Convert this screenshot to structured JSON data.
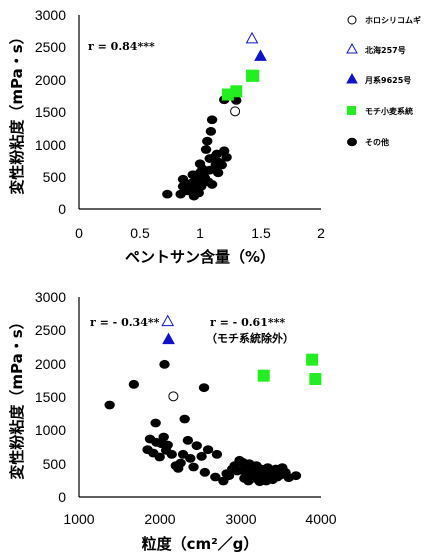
{
  "colors": {
    "green": "#22ee22",
    "blue": "#1010d0",
    "black": "#000000"
  },
  "legend": [
    {
      "label": "ホロシリコムギ",
      "marker": "open-circle"
    },
    {
      "label": "北海257号",
      "marker": "open-triangle"
    },
    {
      "label": "月系9625号",
      "marker": "filled-triangle"
    },
    {
      "label": "モチ小麦系統",
      "marker": "green-square"
    },
    {
      "label": "その他",
      "marker": "black-circle"
    }
  ],
  "chart_data": [
    {
      "type": "scatter",
      "title": "",
      "xlabel": "ペントサン含量（%）",
      "ylabel": "変性粉粘度（mPa・s）",
      "xlim": [
        0,
        2
      ],
      "ylim": [
        0,
        3000
      ],
      "xticks": [
        "0",
        "0.5",
        "1",
        "1.5",
        "2"
      ],
      "yticks": [
        "0",
        "500",
        "1000",
        "1500",
        "2000",
        "2500",
        "3000"
      ],
      "annotations": [
        "r = 0.84***"
      ],
      "series": [
        {
          "name": "ホロシリコムギ",
          "marker": "open-circle",
          "points": [
            [
              1.29,
              1510
            ]
          ]
        },
        {
          "name": "北海257号",
          "marker": "open-triangle",
          "points": [
            [
              1.43,
              2630
            ]
          ]
        },
        {
          "name": "月系9625号",
          "marker": "filled-triangle",
          "points": [
            [
              1.5,
              2360
            ]
          ]
        },
        {
          "name": "モチ小麦系統",
          "marker": "green-square",
          "points": [
            [
              1.23,
              1770
            ],
            [
              1.3,
              1820
            ],
            [
              1.43,
              2060
            ],
            [
              1.44,
              2060
            ]
          ]
        },
        {
          "name": "その他",
          "marker": "black-circle",
          "points": [
            [
              0.73,
              230
            ],
            [
              0.84,
              230
            ],
            [
              0.86,
              350
            ],
            [
              0.86,
              460
            ],
            [
              0.9,
              280
            ],
            [
              0.93,
              400
            ],
            [
              0.94,
              530
            ],
            [
              0.95,
              200
            ],
            [
              0.96,
              310
            ],
            [
              0.97,
              460
            ],
            [
              0.97,
              280
            ],
            [
              0.98,
              330
            ],
            [
              0.99,
              250
            ],
            [
              1.0,
              560
            ],
            [
              1.0,
              700
            ],
            [
              1.01,
              350
            ],
            [
              1.02,
              400
            ],
            [
              1.02,
              620
            ],
            [
              1.03,
              520
            ],
            [
              1.04,
              480
            ],
            [
              1.05,
              920
            ],
            [
              1.06,
              1050
            ],
            [
              1.07,
              420
            ],
            [
              1.08,
              600
            ],
            [
              1.08,
              780
            ],
            [
              1.09,
              1200
            ],
            [
              1.1,
              380
            ],
            [
              1.1,
              1380
            ],
            [
              1.12,
              800
            ],
            [
              1.13,
              680
            ],
            [
              1.14,
              850
            ],
            [
              1.15,
              560
            ],
            [
              1.16,
              720
            ],
            [
              1.18,
              680
            ],
            [
              1.2,
              900
            ],
            [
              1.22,
              800
            ],
            [
              1.2,
              1690
            ],
            [
              1.3,
              1680
            ]
          ]
        }
      ]
    },
    {
      "type": "scatter",
      "title": "",
      "xlabel": "粒度（cm²／g）",
      "ylabel": "変性粉粘度（mPa・s）",
      "xlim": [
        1000,
        4000
      ],
      "ylim": [
        0,
        3000
      ],
      "xticks": [
        "1000",
        "2000",
        "3000",
        "4000"
      ],
      "yticks": [
        "0",
        "500",
        "1000",
        "1500",
        "2000",
        "2500",
        "3000"
      ],
      "annotations": [
        "r = - 0.34**",
        "r = - 0.61***",
        "（モチ系統除外）"
      ],
      "series": [
        {
          "name": "ホロシリコムギ",
          "marker": "open-circle",
          "points": [
            [
              2170,
              1510
            ]
          ]
        },
        {
          "name": "北海257号",
          "marker": "open-triangle",
          "points": [
            [
              2100,
              2630
            ]
          ]
        },
        {
          "name": "月系9625号",
          "marker": "filled-triangle",
          "points": [
            [
              2110,
              2360
            ]
          ]
        },
        {
          "name": "モチ小麦系統",
          "marker": "green-square",
          "points": [
            [
              3290,
              1820
            ],
            [
              3890,
              2060
            ],
            [
              3930,
              1770
            ]
          ]
        },
        {
          "name": "その他",
          "marker": "black-circle",
          "points": [
            [
              1380,
              1380
            ],
            [
              1680,
              1690
            ],
            [
              2060,
              1990
            ],
            [
              2550,
              1640
            ],
            [
              1850,
              710
            ],
            [
              1880,
              870
            ],
            [
              1920,
              660
            ],
            [
              1950,
              1110
            ],
            [
              1960,
              820
            ],
            [
              2000,
              600
            ],
            [
              2020,
              800
            ],
            [
              2050,
              900
            ],
            [
              2080,
              700
            ],
            [
              2100,
              780
            ],
            [
              2150,
              640
            ],
            [
              2200,
              470
            ],
            [
              2230,
              430
            ],
            [
              2260,
              510
            ],
            [
              2290,
              640
            ],
            [
              2310,
              1170
            ],
            [
              2350,
              850
            ],
            [
              2380,
              580
            ],
            [
              2420,
              450
            ],
            [
              2460,
              770
            ],
            [
              2520,
              610
            ],
            [
              2560,
              370
            ],
            [
              2600,
              710
            ],
            [
              2690,
              300
            ],
            [
              2710,
              640
            ],
            [
              2790,
              240
            ],
            [
              2830,
              350
            ],
            [
              2860,
              320
            ],
            [
              2900,
              420
            ],
            [
              2930,
              470
            ],
            [
              2960,
              390
            ],
            [
              2990,
              550
            ],
            [
              3020,
              400
            ],
            [
              3030,
              520
            ],
            [
              3050,
              280
            ],
            [
              3070,
              450
            ],
            [
              3090,
              360
            ],
            [
              3100,
              240
            ],
            [
              3110,
              500
            ],
            [
              3130,
              330
            ],
            [
              3150,
              430
            ],
            [
              3170,
              380
            ],
            [
              3190,
              280
            ],
            [
              3200,
              470
            ],
            [
              3220,
              350
            ],
            [
              3240,
              230
            ],
            [
              3260,
              420
            ],
            [
              3280,
              300
            ],
            [
              3300,
              370
            ],
            [
              3320,
              240
            ],
            [
              3340,
              440
            ],
            [
              3360,
              300
            ],
            [
              3380,
              380
            ],
            [
              3400,
              260
            ],
            [
              3420,
              350
            ],
            [
              3440,
              420
            ],
            [
              3460,
              300
            ],
            [
              3480,
              380
            ],
            [
              3500,
              330
            ],
            [
              3520,
              440
            ],
            [
              3560,
              370
            ],
            [
              3600,
              290
            ],
            [
              3690,
              320
            ]
          ]
        }
      ]
    }
  ]
}
